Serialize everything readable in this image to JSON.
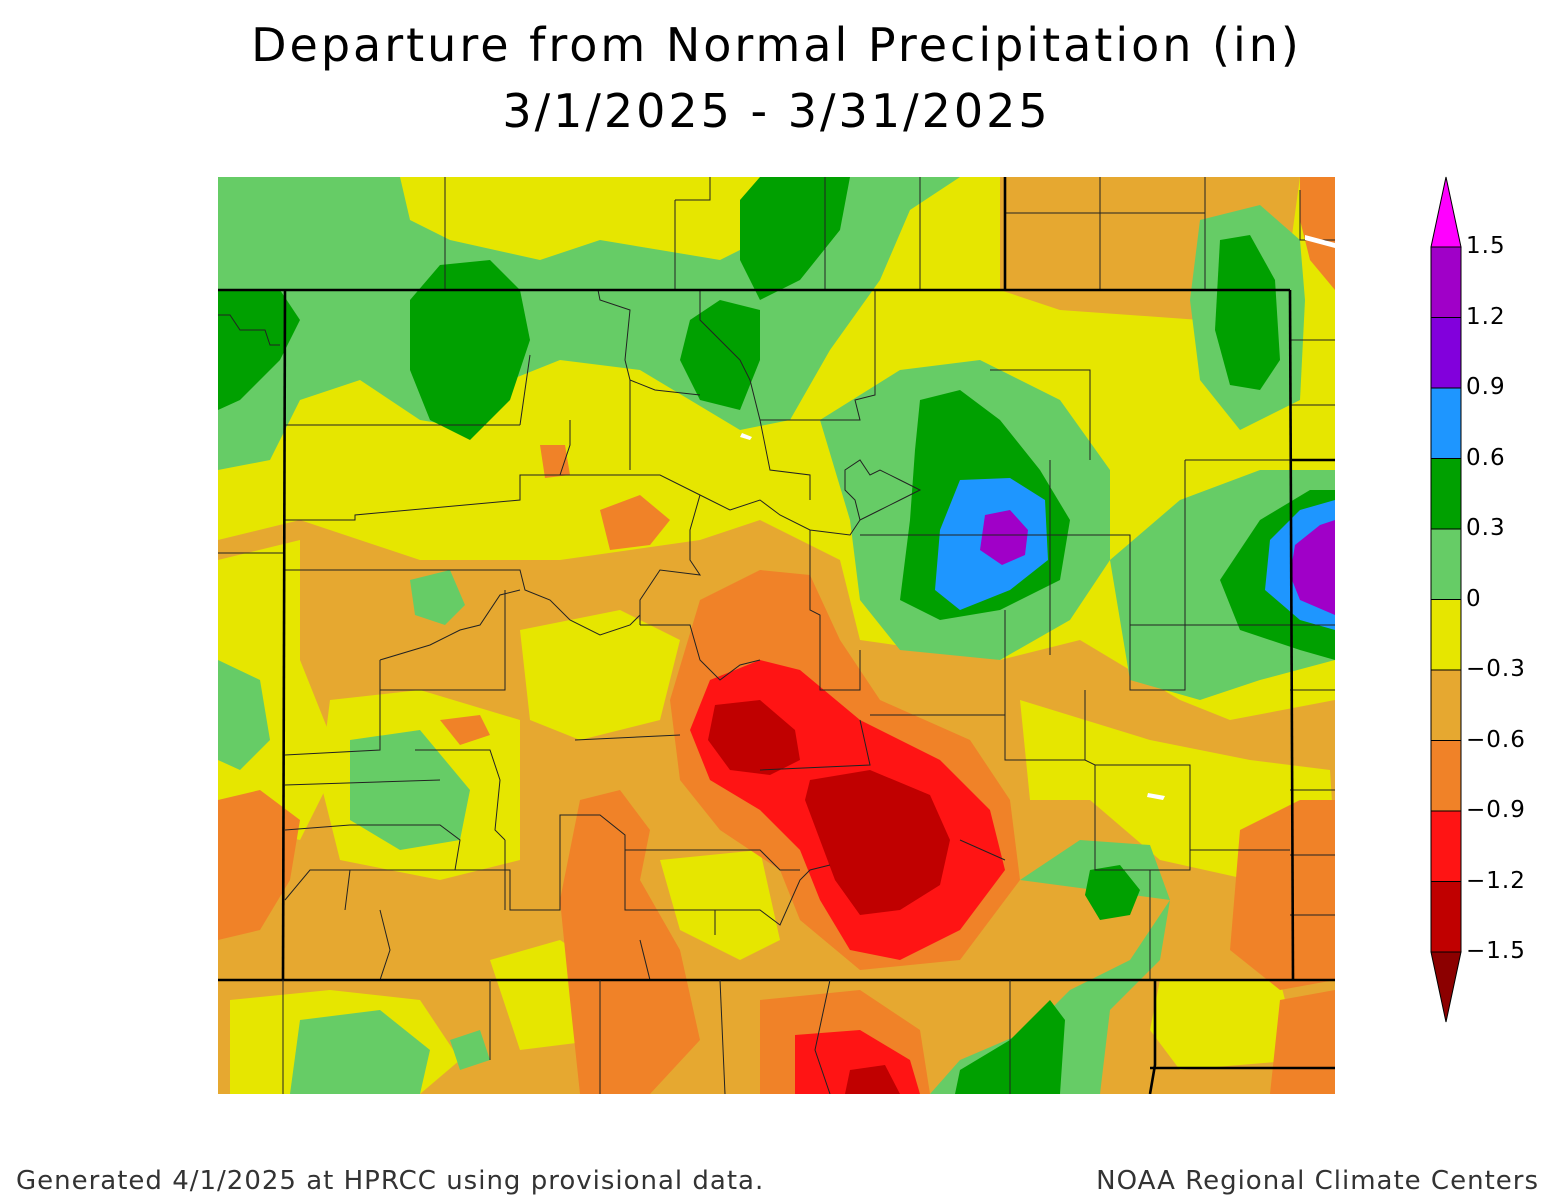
{
  "title": {
    "line1": "Departure from Normal Precipitation (in)",
    "line2": "3/1/2025 - 3/31/2025"
  },
  "legend": {
    "units": "in",
    "labels": [
      "1.5",
      "1.2",
      "0.9",
      "0.6",
      "0.3",
      "0",
      "−0.3",
      "−0.6",
      "−0.9",
      "−1.2",
      "−1.5"
    ],
    "bins": [
      {
        "range": "above 1.5",
        "color": "#ff00ff"
      },
      {
        "range": "1.2 to 1.5",
        "color": "#a000c8"
      },
      {
        "range": "0.9 to 1.2",
        "color": "#8200dc"
      },
      {
        "range": "0.6 to 0.9",
        "color": "#1e96ff"
      },
      {
        "range": "0.3 to 0.6",
        "color": "#00a000"
      },
      {
        "range": "0 to 0.3",
        "color": "#66cc66"
      },
      {
        "range": "-0.3 to 0",
        "color": "#e6e600"
      },
      {
        "range": "-0.6 to -0.3",
        "color": "#e6a830"
      },
      {
        "range": "-0.9 to -0.6",
        "color": "#f08228"
      },
      {
        "range": "-1.2 to -0.9",
        "color": "#ff1414"
      },
      {
        "range": "-1.5 to -1.2",
        "color": "#c00000"
      },
      {
        "range": "below -1.5",
        "color": "#8c0000"
      }
    ]
  },
  "map": {
    "region": "Colorado and surrounding states",
    "variable": "precipitation departure from normal"
  },
  "footer": {
    "left": "Generated 4/1/2025 at HPRCC using provisional data.",
    "right": "NOAA Regional Climate Centers"
  }
}
